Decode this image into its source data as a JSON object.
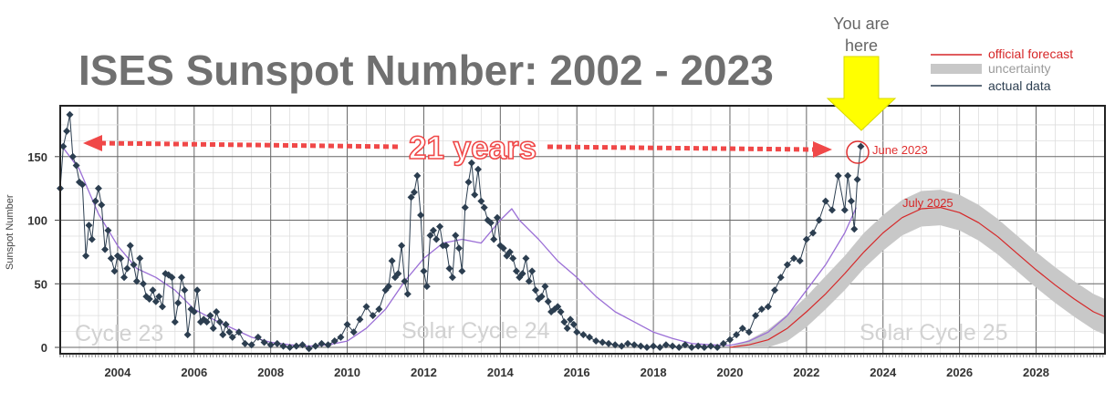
{
  "chart_data": {
    "type": "line",
    "title": "ISES Sunspot Number: 2002 - 2023",
    "ylabel": "Sunspot Number",
    "xlabel": "",
    "xlim": [
      2002.5,
      2029.8
    ],
    "ylim": [
      -5,
      190
    ],
    "grid": true,
    "x_ticks": [
      2004,
      2006,
      2008,
      2010,
      2012,
      2014,
      2016,
      2018,
      2020,
      2022,
      2024,
      2026,
      2028
    ],
    "x_tick_labels": [
      "2004",
      "2006",
      "2008",
      "2010",
      "2012",
      "2014",
      "2016",
      "2018",
      "2020",
      "2022",
      "2024",
      "2026",
      "2028"
    ],
    "y_ticks": [
      0,
      50,
      100,
      150
    ],
    "y_tick_labels": [
      "0",
      "50",
      "100",
      "150"
    ],
    "legend": {
      "placement": "top-right",
      "entries": [
        {
          "label": "official forecast",
          "color": "#d62728",
          "style": "line"
        },
        {
          "label": "uncertainty",
          "color": "#c8c8c8",
          "style": "band"
        },
        {
          "label": "actual data",
          "color": "#2c3e50",
          "style": "line"
        }
      ]
    },
    "series": [
      {
        "name": "actual data",
        "color": "#2c3e50",
        "marker": "diamond",
        "x": [
          2002.5,
          2002.58,
          2002.67,
          2002.75,
          2002.83,
          2002.92,
          2003.0,
          2003.08,
          2003.17,
          2003.25,
          2003.33,
          2003.42,
          2003.5,
          2003.58,
          2003.67,
          2003.75,
          2003.83,
          2003.92,
          2004.0,
          2004.08,
          2004.17,
          2004.25,
          2004.33,
          2004.42,
          2004.5,
          2004.58,
          2004.67,
          2004.75,
          2004.83,
          2004.92,
          2005.0,
          2005.08,
          2005.17,
          2005.25,
          2005.33,
          2005.42,
          2005.5,
          2005.58,
          2005.67,
          2005.75,
          2005.83,
          2005.92,
          2006.0,
          2006.08,
          2006.17,
          2006.25,
          2006.33,
          2006.42,
          2006.5,
          2006.58,
          2006.67,
          2006.75,
          2006.83,
          2006.92,
          2007.0,
          2007.17,
          2007.33,
          2007.5,
          2007.67,
          2007.83,
          2008.0,
          2008.17,
          2008.33,
          2008.5,
          2008.67,
          2008.83,
          2009.0,
          2009.17,
          2009.33,
          2009.5,
          2009.67,
          2009.83,
          2010.0,
          2010.17,
          2010.33,
          2010.5,
          2010.67,
          2010.83,
          2011.0,
          2011.08,
          2011.17,
          2011.25,
          2011.33,
          2011.42,
          2011.5,
          2011.58,
          2011.67,
          2011.75,
          2011.83,
          2011.92,
          2012.0,
          2012.08,
          2012.17,
          2012.25,
          2012.33,
          2012.42,
          2012.5,
          2012.58,
          2012.67,
          2012.75,
          2012.83,
          2012.92,
          2013.0,
          2013.08,
          2013.17,
          2013.25,
          2013.33,
          2013.42,
          2013.5,
          2013.58,
          2013.67,
          2013.75,
          2013.83,
          2013.92,
          2014.0,
          2014.08,
          2014.17,
          2014.25,
          2014.33,
          2014.42,
          2014.5,
          2014.58,
          2014.67,
          2014.75,
          2014.83,
          2014.92,
          2015.0,
          2015.08,
          2015.17,
          2015.25,
          2015.33,
          2015.42,
          2015.5,
          2015.58,
          2015.67,
          2015.75,
          2015.83,
          2015.92,
          2016.0,
          2016.17,
          2016.33,
          2016.5,
          2016.67,
          2016.83,
          2017.0,
          2017.17,
          2017.33,
          2017.5,
          2017.67,
          2017.83,
          2018.0,
          2018.17,
          2018.33,
          2018.5,
          2018.67,
          2018.83,
          2019.0,
          2019.17,
          2019.33,
          2019.5,
          2019.67,
          2019.83,
          2020.0,
          2020.17,
          2020.33,
          2020.5,
          2020.67,
          2020.83,
          2021.0,
          2021.17,
          2021.33,
          2021.5,
          2021.67,
          2021.83,
          2022.0,
          2022.17,
          2022.33,
          2022.5,
          2022.67,
          2022.83,
          2023.0,
          2023.08,
          2023.17,
          2023.25,
          2023.33,
          2023.42
        ],
        "y": [
          125,
          158,
          170,
          183,
          150,
          143,
          130,
          128,
          72,
          96,
          85,
          115,
          125,
          112,
          77,
          92,
          70,
          60,
          72,
          70,
          55,
          62,
          80,
          65,
          52,
          70,
          50,
          40,
          38,
          45,
          36,
          40,
          32,
          58,
          57,
          55,
          20,
          35,
          55,
          45,
          10,
          30,
          28,
          45,
          20,
          22,
          20,
          25,
          15,
          28,
          20,
          10,
          18,
          12,
          8,
          12,
          3,
          2,
          8,
          4,
          2,
          3,
          1,
          0,
          1,
          2,
          -1,
          1,
          3,
          2,
          5,
          8,
          18,
          12,
          22,
          32,
          25,
          30,
          45,
          48,
          68,
          55,
          58,
          80,
          52,
          42,
          118,
          122,
          135,
          104,
          60,
          48,
          88,
          92,
          85,
          95,
          80,
          80,
          62,
          55,
          88,
          78,
          60,
          110,
          130,
          145,
          120,
          140,
          115,
          110,
          100,
          98,
          85,
          102,
          80,
          78,
          72,
          75,
          70,
          60,
          55,
          58,
          70,
          52,
          60,
          45,
          38,
          40,
          48,
          36,
          28,
          30,
          32,
          28,
          20,
          15,
          22,
          18,
          12,
          10,
          8,
          5,
          4,
          3,
          2,
          1,
          3,
          2,
          1,
          0,
          1,
          0,
          2,
          1,
          0,
          2,
          0,
          1,
          0,
          1,
          0,
          3,
          6,
          10,
          15,
          12,
          25,
          30,
          32,
          45,
          55,
          65,
          70,
          68,
          85,
          90,
          100,
          115,
          108,
          135,
          108,
          135,
          115,
          93,
          132,
          158
        ]
      },
      {
        "name": "",
        "color": "#9b6fd6",
        "style": "smoothed",
        "x": [
          2002.5,
          2003.0,
          2003.5,
          2004.0,
          2004.5,
          2005.0,
          2005.5,
          2006.0,
          2006.5,
          2007.0,
          2007.5,
          2008.0,
          2008.5,
          2009.0,
          2009.5,
          2010.0,
          2010.5,
          2011.0,
          2011.5,
          2012.0,
          2012.5,
          2013.0,
          2013.5,
          2014.0,
          2014.3,
          2014.5,
          2015.0,
          2015.5,
          2016.0,
          2016.5,
          2017.0,
          2017.5,
          2018.0,
          2018.5,
          2019.0,
          2019.5,
          2020.0,
          2020.5,
          2021.0,
          2021.5,
          2022.0,
          2022.5,
          2023.0,
          2023.3
        ],
        "y": [
          160,
          140,
          105,
          80,
          62,
          55,
          45,
          30,
          22,
          15,
          8,
          4,
          2,
          1,
          2,
          5,
          15,
          30,
          52,
          70,
          82,
          85,
          82,
          100,
          109,
          100,
          85,
          68,
          55,
          40,
          28,
          20,
          12,
          7,
          3,
          2,
          1.5,
          5,
          12,
          25,
          45,
          65,
          90,
          110
        ]
      },
      {
        "name": "official forecast",
        "color": "#d62728",
        "x": [
          2020.0,
          2020.5,
          2021.0,
          2021.5,
          2022.0,
          2022.5,
          2023.0,
          2023.5,
          2024.0,
          2024.5,
          2025.0,
          2025.5,
          2026.0,
          2026.5,
          2027.0,
          2027.5,
          2028.0,
          2028.5,
          2029.0,
          2029.5,
          2029.8
        ],
        "y": [
          0,
          2,
          6,
          15,
          28,
          42,
          58,
          75,
          90,
          102,
          109,
          110,
          106,
          98,
          87,
          74,
          61,
          49,
          38,
          28,
          24
        ]
      },
      {
        "name": "uncertainty",
        "color": "#c8c8c8",
        "x": [
          2020.0,
          2020.5,
          2021.0,
          2021.5,
          2022.0,
          2022.5,
          2023.0,
          2023.5,
          2024.0,
          2024.5,
          2025.0,
          2025.5,
          2026.0,
          2026.5,
          2027.0,
          2027.5,
          2028.0,
          2028.5,
          2029.0,
          2029.5,
          2029.8
        ],
        "low": [
          0,
          0,
          0,
          5,
          16,
          30,
          45,
          62,
          76,
          88,
          95,
          96,
          92,
          84,
          73,
          60,
          47,
          35,
          24,
          14,
          10
        ],
        "high": [
          0,
          6,
          14,
          26,
          40,
          56,
          72,
          90,
          104,
          116,
          123,
          124,
          120,
          112,
          101,
          88,
          75,
          63,
          52,
          42,
          38
        ]
      }
    ],
    "annotations": {
      "you_are_here": "You are\nhere",
      "arrow_label": "21 years",
      "june_2023": "June 2023",
      "july_2025": "July 2025",
      "cycle23": "Cycle 23",
      "cycle24": "Solar Cycle 24",
      "cycle25": "Solar Cycle 25"
    }
  }
}
